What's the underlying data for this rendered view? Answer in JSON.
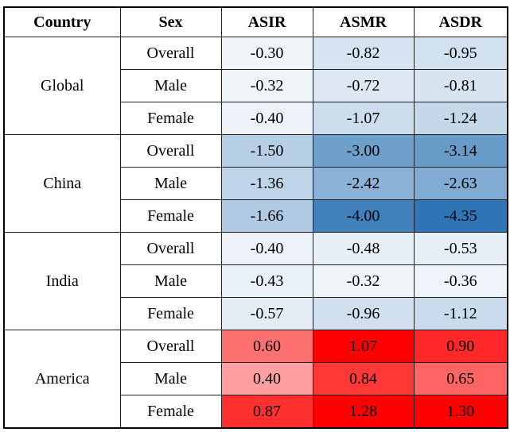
{
  "table": {
    "headers": [
      "Country",
      "Sex",
      "ASIR",
      "ASMR",
      "ASDR"
    ],
    "groups": [
      {
        "country": "Global",
        "rows": [
          {
            "sex": "Overall",
            "values": [
              {
                "text": "-0.30",
                "color": "#F1F5FA"
              },
              {
                "text": "-0.82",
                "color": "#D7E4F1"
              },
              {
                "text": "-0.95",
                "color": "#D2E1EF"
              }
            ]
          },
          {
            "sex": "Male",
            "values": [
              {
                "text": "-0.32",
                "color": "#F0F5FA"
              },
              {
                "text": "-0.72",
                "color": "#DDE8F3"
              },
              {
                "text": "-0.81",
                "color": "#D8E5F1"
              }
            ]
          },
          {
            "sex": "Female",
            "values": [
              {
                "text": "-0.40",
                "color": "#ECF2F8"
              },
              {
                "text": "-1.07",
                "color": "#CCDDED"
              },
              {
                "text": "-1.24",
                "color": "#C4D8EA"
              }
            ]
          }
        ]
      },
      {
        "country": "China",
        "rows": [
          {
            "sex": "Overall",
            "values": [
              {
                "text": "-1.50",
                "color": "#B7CFE5"
              },
              {
                "text": "-3.00",
                "color": "#6FA0CC"
              },
              {
                "text": "-3.14",
                "color": "#699BC9"
              }
            ]
          },
          {
            "sex": "Male",
            "values": [
              {
                "text": "-1.36",
                "color": "#BED4E8"
              },
              {
                "text": "-2.42",
                "color": "#8BB2D6"
              },
              {
                "text": "-2.63",
                "color": "#81ABD2"
              }
            ]
          },
          {
            "sex": "Female",
            "values": [
              {
                "text": "-1.66",
                "color": "#B0CAE3"
              },
              {
                "text": "-4.00",
                "color": "#4080BB"
              },
              {
                "text": "-4.35",
                "color": "#2F75B5"
              }
            ]
          }
        ]
      },
      {
        "country": "India",
        "rows": [
          {
            "sex": "Overall",
            "values": [
              {
                "text": "-0.40",
                "color": "#ECF2F8"
              },
              {
                "text": "-0.48",
                "color": "#E8F0F7"
              },
              {
                "text": "-0.53",
                "color": "#E6EEF6"
              }
            ]
          },
          {
            "sex": "Male",
            "values": [
              {
                "text": "-0.43",
                "color": "#EAF1F8"
              },
              {
                "text": "-0.32",
                "color": "#F0F5FA"
              },
              {
                "text": "-0.36",
                "color": "#EEF4F9"
              }
            ]
          },
          {
            "sex": "Female",
            "values": [
              {
                "text": "-0.57",
                "color": "#E4EDF5"
              },
              {
                "text": "-0.96",
                "color": "#D1E0EF"
              },
              {
                "text": "-1.12",
                "color": "#C9DBEC"
              }
            ]
          }
        ]
      },
      {
        "country": "America",
        "rows": [
          {
            "sex": "Overall",
            "values": [
              {
                "text": "0.60",
                "color": "#FF7070"
              },
              {
                "text": "1.07",
                "color": "#FF0000"
              },
              {
                "text": "0.90",
                "color": "#FF2828"
              }
            ]
          },
          {
            "sex": "Male",
            "values": [
              {
                "text": "0.40",
                "color": "#FF9F9F"
              },
              {
                "text": "0.84",
                "color": "#FF3737"
              },
              {
                "text": "0.65",
                "color": "#FF6464"
              }
            ]
          },
          {
            "sex": "Female",
            "values": [
              {
                "text": "0.87",
                "color": "#FF3030"
              },
              {
                "text": "1.28",
                "color": "#FF0000"
              },
              {
                "text": "1.30",
                "color": "#FF0000"
              }
            ]
          }
        ]
      }
    ],
    "negative_scale_color": "#2F75B5",
    "positive_scale_color": "#FF0000"
  }
}
